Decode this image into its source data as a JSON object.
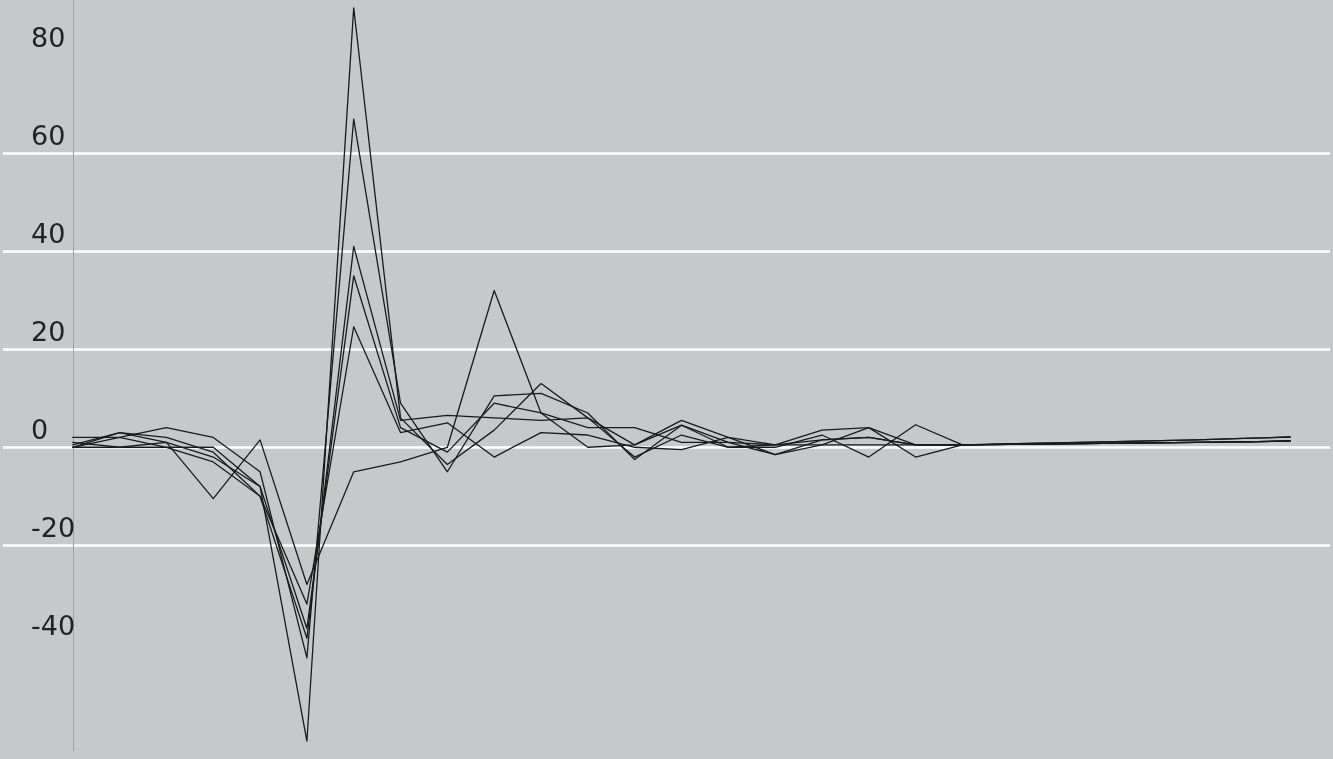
{
  "chart_data": {
    "type": "line",
    "categories": [
      null,
      null,
      null,
      null,
      null,
      null,
      null,
      null,
      null,
      null,
      null,
      null,
      null,
      null,
      null,
      null,
      null,
      null,
      null,
      null,
      null,
      null,
      null,
      null,
      null,
      null,
      null
    ],
    "series": [
      {
        "color": "#1a1a1a",
        "values": [
          0,
          3,
          1,
          -2,
          -8,
          -60,
          89.7,
          6,
          -3.5,
          3.5,
          13,
          6,
          0.5,
          5.5,
          2,
          0.5,
          1.5,
          2,
          0.5,
          0.5,
          0.7,
          0.9,
          1.1,
          1.3,
          1.5,
          1.8,
          2.1
        ]
      },
      {
        "color": "#1a1a1a",
        "values": [
          2,
          2,
          4,
          2,
          -5,
          -43,
          67,
          9,
          -5,
          10.5,
          11,
          7,
          -2.5,
          4.5,
          1,
          -1.5,
          0.5,
          4,
          -2,
          0.5,
          0.6,
          0.7,
          0.8,
          0.9,
          1,
          1.1,
          1.3
        ]
      },
      {
        "color": "#1a1a1a",
        "values": [
          0,
          2,
          0,
          -3,
          -10,
          -39,
          41,
          5.5,
          6.5,
          6,
          5.5,
          6,
          -2,
          2.5,
          0,
          0,
          2.5,
          -2,
          4.6,
          0.5,
          0.7,
          0.9,
          1.1,
          1.3,
          1.5,
          1.8,
          2.1
        ]
      },
      {
        "color": "#1a1a1a",
        "values": [
          1,
          0,
          0,
          0,
          -8,
          -37,
          35,
          4,
          -1,
          9,
          7,
          4,
          4,
          1,
          1,
          0.5,
          3.5,
          4,
          0.5,
          0.5,
          0.6,
          0.7,
          0.8,
          0.9,
          1,
          1.1,
          1.3
        ]
      },
      {
        "color": "#1a1a1a",
        "values": [
          0.5,
          3,
          2,
          -1,
          -10,
          -32,
          24.6,
          3,
          5,
          -2,
          3,
          2.5,
          0,
          -0.5,
          2,
          -1.5,
          1.5,
          2,
          0.5,
          0.5,
          0.6,
          0.7,
          0.8,
          0.9,
          1,
          1.1,
          1.3
        ]
      },
      {
        "color": "#1a1a1a",
        "values": [
          0,
          0,
          1,
          -10.5,
          1.5,
          -28,
          -5,
          -3,
          0,
          32,
          7,
          0,
          0.5,
          4.5,
          0,
          0.5,
          0.5,
          0.5,
          0.5,
          0.5,
          0.6,
          0.7,
          0.8,
          0.9,
          1,
          1.1,
          1.3
        ]
      }
    ],
    "ylim": [
      -62,
      91.3
    ],
    "yticks": [
      -40,
      -20,
      0,
      20,
      40,
      60,
      80
    ],
    "grid": "y",
    "line_style": "solid",
    "marker": "none"
  }
}
